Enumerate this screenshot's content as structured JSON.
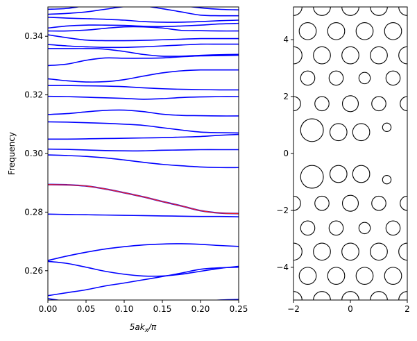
{
  "chart_data": [
    {
      "type": "line",
      "title": "",
      "xlabel_main": "5ak",
      "xlabel_sub": "x",
      "xlabel_tail": "/π",
      "ylabel": "Frequency",
      "xlim": [
        0,
        0.25
      ],
      "ylim": [
        0.25,
        0.35
      ],
      "xticks": [
        0.0,
        0.05,
        0.1,
        0.15,
        0.2,
        0.25
      ],
      "xtick_labels": [
        "0.00",
        "0.05",
        "0.10",
        "0.15",
        "0.20",
        "0.25"
      ],
      "yticks": [
        0.26,
        0.28,
        0.3,
        0.32,
        0.34
      ],
      "ytick_labels": [
        "0.26",
        "0.28",
        "0.30",
        "0.32",
        "0.34"
      ],
      "grid": false,
      "series_color": "#0000ff",
      "highlight_color": "#e8202a",
      "x": [
        0.0,
        0.025,
        0.05,
        0.075,
        0.1,
        0.125,
        0.15,
        0.175,
        0.2,
        0.225,
        0.25
      ],
      "series": [
        {
          "values": [
            0.2505,
            0.2495,
            0.2485,
            0.2478,
            0.2472,
            0.2472,
            0.2478,
            0.2485,
            0.2495,
            0.25,
            0.2502
          ]
        },
        {
          "values": [
            0.2515,
            0.2525,
            0.2535,
            0.2548,
            0.2558,
            0.2569,
            0.258,
            0.2592,
            0.2605,
            0.261,
            0.2612
          ]
        },
        {
          "values": [
            0.2632,
            0.2625,
            0.2612,
            0.2598,
            0.2588,
            0.2582,
            0.2582,
            0.2588,
            0.2598,
            0.2608,
            0.2615
          ]
        },
        {
          "values": [
            0.2635,
            0.265,
            0.2663,
            0.2674,
            0.2682,
            0.2688,
            0.2691,
            0.2692,
            0.269,
            0.2686,
            0.2683
          ]
        },
        {
          "values": [
            0.2793,
            0.2792,
            0.2791,
            0.279,
            0.2789,
            0.2788,
            0.2787,
            0.2786,
            0.2785,
            0.2785,
            0.2784
          ]
        },
        {
          "values": [
            0.2995,
            0.2993,
            0.299,
            0.2985,
            0.2978,
            0.297,
            0.2963,
            0.2958,
            0.2954,
            0.2952,
            0.2952
          ]
        },
        {
          "values": [
            0.3015,
            0.3014,
            0.3012,
            0.301,
            0.3009,
            0.3009,
            0.3011,
            0.3012,
            0.3013,
            0.3013,
            0.3013
          ]
        },
        {
          "values": [
            0.3049,
            0.3049,
            0.305,
            0.3051,
            0.3052,
            0.3053,
            0.3054,
            0.3056,
            0.3058,
            0.3062,
            0.3065
          ]
        },
        {
          "values": [
            0.3108,
            0.3107,
            0.3105,
            0.3103,
            0.31,
            0.3096,
            0.3088,
            0.308,
            0.3073,
            0.3071,
            0.307
          ]
        },
        {
          "values": [
            0.3133,
            0.3136,
            0.3142,
            0.3147,
            0.3148,
            0.3143,
            0.3134,
            0.313,
            0.3129,
            0.3128,
            0.3128
          ]
        },
        {
          "values": [
            0.3195,
            0.3194,
            0.3192,
            0.319,
            0.3188,
            0.3185,
            0.3187,
            0.3191,
            0.3193,
            0.3194,
            0.3194
          ]
        },
        {
          "values": [
            0.3232,
            0.3232,
            0.3231,
            0.323,
            0.3228,
            0.3224,
            0.3221,
            0.3219,
            0.3218,
            0.3217,
            0.3217
          ]
        },
        {
          "values": [
            0.3255,
            0.3248,
            0.3244,
            0.3245,
            0.3252,
            0.3264,
            0.3275,
            0.3282,
            0.3285,
            0.3285,
            0.3285
          ]
        },
        {
          "values": [
            0.33,
            0.3305,
            0.3318,
            0.3326,
            0.3325,
            0.3325,
            0.3326,
            0.333,
            0.3333,
            0.3334,
            0.3335
          ]
        },
        {
          "values": [
            0.3358,
            0.3358,
            0.3358,
            0.3356,
            0.3348,
            0.3338,
            0.3332,
            0.3332,
            0.3335,
            0.3337,
            0.3338
          ]
        },
        {
          "values": [
            0.3372,
            0.3367,
            0.3364,
            0.3362,
            0.3362,
            0.3364,
            0.3367,
            0.337,
            0.3373,
            0.3373,
            0.3373
          ]
        },
        {
          "values": [
            0.3405,
            0.3395,
            0.3387,
            0.3385,
            0.3385,
            0.3386,
            0.3388,
            0.339,
            0.3392,
            0.3392,
            0.3392
          ]
        },
        {
          "values": [
            0.3418,
            0.3418,
            0.3421,
            0.3427,
            0.3432,
            0.3432,
            0.3428,
            0.342,
            0.3419,
            0.3418,
            0.3418
          ]
        },
        {
          "values": [
            0.3428,
            0.3435,
            0.3438,
            0.3438,
            0.3437,
            0.3434,
            0.3433,
            0.3435,
            0.3438,
            0.3442,
            0.3444
          ]
        },
        {
          "values": [
            0.3465,
            0.3462,
            0.346,
            0.3458,
            0.3455,
            0.345,
            0.3448,
            0.3448,
            0.345,
            0.3453,
            0.3455
          ]
        },
        {
          "values": [
            0.3475,
            0.3478,
            0.3483,
            0.3492,
            0.3501,
            0.3503,
            0.3494,
            0.3483,
            0.3472,
            0.347,
            0.347
          ]
        },
        {
          "values": [
            0.3492,
            0.3495,
            0.3505,
            0.3515,
            0.352,
            0.352,
            0.3515,
            0.3505,
            0.3497,
            0.3492,
            0.349
          ]
        }
      ],
      "highlight_series": {
        "values": [
          0.2894,
          0.2893,
          0.2889,
          0.2879,
          0.2866,
          0.2852,
          0.2836,
          0.2821,
          0.2805,
          0.2797,
          0.2795
        ]
      }
    },
    {
      "type": "scatter",
      "title": "",
      "xlim": [
        -2,
        2
      ],
      "ylim": [
        -5.15,
        5.15
      ],
      "xticks": [
        -2,
        0,
        2
      ],
      "xtick_labels": [
        "−2",
        "0",
        "2"
      ],
      "yticks": [
        -4,
        -2,
        0,
        2,
        4
      ],
      "ytick_labels": [
        "−4",
        "−2",
        "0",
        "2",
        "4"
      ],
      "grid": false,
      "marker": "circle outline",
      "circles": [
        {
          "x": -2.0,
          "y": 5.15,
          "r": 0.3
        },
        {
          "x": -1.0,
          "y": 5.15,
          "r": 0.3
        },
        {
          "x": 0.0,
          "y": 5.15,
          "r": 0.3
        },
        {
          "x": 1.0,
          "y": 5.15,
          "r": 0.3
        },
        {
          "x": 2.0,
          "y": 5.15,
          "r": 0.3
        },
        {
          "x": -1.5,
          "y": 4.3,
          "r": 0.3
        },
        {
          "x": -0.5,
          "y": 4.3,
          "r": 0.3
        },
        {
          "x": 0.5,
          "y": 4.3,
          "r": 0.3
        },
        {
          "x": 1.5,
          "y": 4.3,
          "r": 0.3
        },
        {
          "x": -2.0,
          "y": 3.45,
          "r": 0.3
        },
        {
          "x": -1.0,
          "y": 3.45,
          "r": 0.3
        },
        {
          "x": 0.0,
          "y": 3.45,
          "r": 0.3
        },
        {
          "x": 1.0,
          "y": 3.45,
          "r": 0.3
        },
        {
          "x": 2.0,
          "y": 3.45,
          "r": 0.3
        },
        {
          "x": -1.5,
          "y": 2.65,
          "r": 0.25
        },
        {
          "x": -0.5,
          "y": 2.65,
          "r": 0.25
        },
        {
          "x": 0.5,
          "y": 2.65,
          "r": 0.2
        },
        {
          "x": 1.5,
          "y": 2.65,
          "r": 0.25
        },
        {
          "x": -2.0,
          "y": 1.75,
          "r": 0.25
        },
        {
          "x": -1.0,
          "y": 1.75,
          "r": 0.25
        },
        {
          "x": 0.0,
          "y": 1.75,
          "r": 0.28
        },
        {
          "x": 1.0,
          "y": 1.75,
          "r": 0.25
        },
        {
          "x": 2.0,
          "y": 1.75,
          "r": 0.25
        },
        {
          "x": -1.35,
          "y": 0.82,
          "r": 0.4
        },
        {
          "x": -0.42,
          "y": 0.75,
          "r": 0.3
        },
        {
          "x": 0.38,
          "y": 0.75,
          "r": 0.3
        },
        {
          "x": 1.28,
          "y": 0.92,
          "r": 0.15
        },
        {
          "x": -1.35,
          "y": -0.82,
          "r": 0.4
        },
        {
          "x": -0.42,
          "y": -0.72,
          "r": 0.3
        },
        {
          "x": 0.38,
          "y": -0.72,
          "r": 0.3
        },
        {
          "x": 1.28,
          "y": -0.92,
          "r": 0.15
        },
        {
          "x": -2.0,
          "y": -1.75,
          "r": 0.25
        },
        {
          "x": -1.0,
          "y": -1.75,
          "r": 0.25
        },
        {
          "x": 0.0,
          "y": -1.75,
          "r": 0.28
        },
        {
          "x": 1.0,
          "y": -1.75,
          "r": 0.25
        },
        {
          "x": 2.0,
          "y": -1.75,
          "r": 0.25
        },
        {
          "x": -1.5,
          "y": -2.62,
          "r": 0.25
        },
        {
          "x": -0.5,
          "y": -2.62,
          "r": 0.25
        },
        {
          "x": 0.5,
          "y": -2.62,
          "r": 0.2
        },
        {
          "x": 1.5,
          "y": -2.62,
          "r": 0.25
        },
        {
          "x": -2.0,
          "y": -3.45,
          "r": 0.3
        },
        {
          "x": -1.0,
          "y": -3.45,
          "r": 0.3
        },
        {
          "x": 0.0,
          "y": -3.45,
          "r": 0.3
        },
        {
          "x": 1.0,
          "y": -3.45,
          "r": 0.3
        },
        {
          "x": 2.0,
          "y": -3.45,
          "r": 0.3
        },
        {
          "x": -1.5,
          "y": -4.3,
          "r": 0.3
        },
        {
          "x": -0.5,
          "y": -4.3,
          "r": 0.3
        },
        {
          "x": 0.5,
          "y": -4.3,
          "r": 0.3
        },
        {
          "x": 1.5,
          "y": -4.3,
          "r": 0.3
        },
        {
          "x": -2.0,
          "y": -5.15,
          "r": 0.3
        },
        {
          "x": -1.0,
          "y": -5.15,
          "r": 0.3
        },
        {
          "x": 0.0,
          "y": -5.15,
          "r": 0.3
        },
        {
          "x": 1.0,
          "y": -5.15,
          "r": 0.3
        },
        {
          "x": 2.0,
          "y": -5.15,
          "r": 0.3
        }
      ]
    }
  ]
}
